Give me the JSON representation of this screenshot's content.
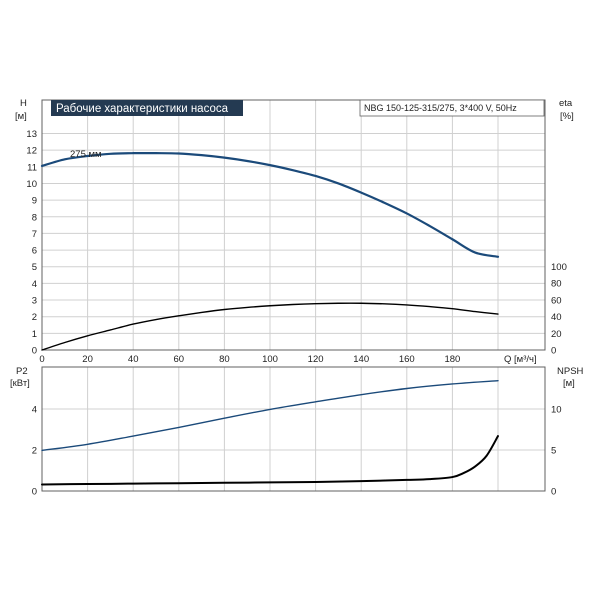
{
  "banner_title": "Рабочие характеристики насоса",
  "model": "NBG 150-125-315/275, 3*400 V, 50Hz",
  "curve_label": "275 мм",
  "colors": {
    "banner_bg": "#243a52",
    "blue_curve": "#1b4a7a",
    "black_curve": "#000000",
    "grid": "#d0d0d0",
    "frame": "#606060"
  },
  "chart_data": [
    {
      "type": "line",
      "panel": "top",
      "xlabel": "Q [м³/ч]",
      "x_ticks": [
        "0",
        "20",
        "40",
        "60",
        "80",
        "100",
        "120",
        "140",
        "160",
        "180"
      ],
      "xlim": [
        0,
        200
      ],
      "left_axis": {
        "label_top": "H",
        "label_unit": "[м]",
        "ylim": [
          0,
          14
        ],
        "ticks": [
          "0",
          "1",
          "2",
          "3",
          "4",
          "5",
          "6",
          "7",
          "8",
          "9",
          "10",
          "11",
          "12",
          "13"
        ]
      },
      "right_axis": {
        "label_top": "eta",
        "label_unit": "[%]",
        "ylim": [
          0,
          110
        ],
        "ticks": [
          "0",
          "20",
          "40",
          "60",
          "80",
          "100"
        ]
      },
      "series": [
        {
          "axis": "left",
          "color": "#1b4a7a",
          "points": [
            [
              0,
              11.05
            ],
            [
              10,
              11.45
            ],
            [
              20,
              11.65
            ],
            [
              30,
              11.78
            ],
            [
              40,
              11.82
            ],
            [
              50,
              11.82
            ],
            [
              60,
              11.8
            ],
            [
              70,
              11.7
            ],
            [
              80,
              11.55
            ],
            [
              90,
              11.35
            ],
            [
              100,
              11.1
            ],
            [
              110,
              10.8
            ],
            [
              120,
              10.45
            ],
            [
              130,
              10.0
            ],
            [
              140,
              9.45
            ],
            [
              150,
              8.85
            ],
            [
              160,
              8.2
            ],
            [
              170,
              7.45
            ],
            [
              180,
              6.65
            ],
            [
              190,
              5.85
            ],
            [
              200,
              5.6
            ]
          ]
        },
        {
          "axis": "right",
          "color": "#000000",
          "points": [
            [
              0,
              0
            ],
            [
              10,
              9
            ],
            [
              20,
              17
            ],
            [
              30,
              24
            ],
            [
              40,
              31
            ],
            [
              50,
              36.5
            ],
            [
              60,
              41
            ],
            [
              70,
              45
            ],
            [
              80,
              48.5
            ],
            [
              90,
              51
            ],
            [
              100,
              53
            ],
            [
              110,
              54.5
            ],
            [
              120,
              55.5
            ],
            [
              130,
              56
            ],
            [
              140,
              56
            ],
            [
              150,
              55.3
            ],
            [
              160,
              54
            ],
            [
              170,
              52
            ],
            [
              180,
              49.5
            ],
            [
              190,
              46
            ],
            [
              200,
              43
            ]
          ]
        }
      ]
    },
    {
      "type": "line",
      "panel": "bottom",
      "xlim": [
        0,
        200
      ],
      "left_axis": {
        "label_top": "P2",
        "label_unit": "[кВт]",
        "ylim": [
          0,
          6
        ],
        "ticks": [
          "0",
          "2",
          "4"
        ]
      },
      "right_axis": {
        "label_top": "NPSH",
        "label_unit": "[м]",
        "ylim": [
          0,
          15
        ],
        "ticks": [
          "0",
          "5",
          "10"
        ]
      },
      "series": [
        {
          "axis": "left",
          "color": "#1b4a7a",
          "points": [
            [
              0,
              1.98
            ],
            [
              20,
              2.28
            ],
            [
              40,
              2.68
            ],
            [
              60,
              3.1
            ],
            [
              80,
              3.55
            ],
            [
              100,
              3.98
            ],
            [
              120,
              4.35
            ],
            [
              140,
              4.7
            ],
            [
              160,
              5.0
            ],
            [
              180,
              5.22
            ],
            [
              200,
              5.38
            ]
          ]
        },
        {
          "axis": "right",
          "color": "#000000",
          "points": [
            [
              0,
              0.8
            ],
            [
              20,
              0.85
            ],
            [
              40,
              0.9
            ],
            [
              60,
              0.95
            ],
            [
              80,
              1.0
            ],
            [
              100,
              1.05
            ],
            [
              120,
              1.1
            ],
            [
              140,
              1.2
            ],
            [
              160,
              1.35
            ],
            [
              170,
              1.45
            ],
            [
              180,
              1.7
            ],
            [
              185,
              2.2
            ],
            [
              190,
              3.0
            ],
            [
              195,
              4.3
            ],
            [
              200,
              6.7
            ]
          ]
        }
      ]
    }
  ]
}
